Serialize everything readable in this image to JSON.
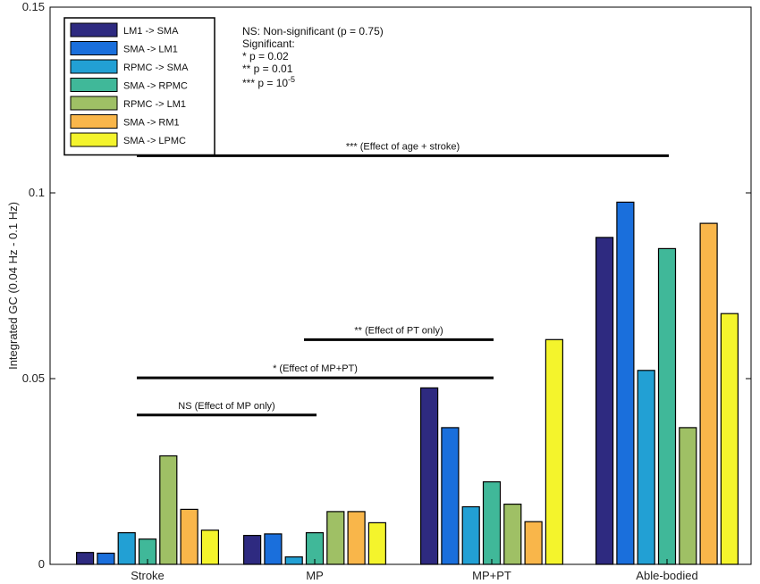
{
  "chart_data": {
    "type": "bar",
    "ylabel": "Integrated GC (0.04 Hz - 0.1 Hz)",
    "ylim": [
      0,
      0.15
    ],
    "yticks": [
      {
        "value": 0,
        "label": "0"
      },
      {
        "value": 0.05,
        "label": "0.05"
      },
      {
        "value": 0.1,
        "label": "0.1"
      },
      {
        "value": 0.15,
        "label": "0.15"
      }
    ],
    "categories": [
      "Stroke",
      "MP",
      "MP+PT",
      "Able-bodied"
    ],
    "series": [
      {
        "name": "LM1 -> SMA",
        "color": "#2e2a80",
        "values": [
          0.0032,
          0.0078,
          0.0475,
          0.088
        ]
      },
      {
        "name": "SMA -> LM1",
        "color": "#1a6fdc",
        "values": [
          0.003,
          0.0082,
          0.0368,
          0.0975
        ]
      },
      {
        "name": "RPMC -> SMA",
        "color": "#22a0d4",
        "values": [
          0.0085,
          0.002,
          0.0155,
          0.0522
        ]
      },
      {
        "name": "SMA -> RPMC",
        "color": "#40b899",
        "values": [
          0.0068,
          0.0085,
          0.0222,
          0.085
        ]
      },
      {
        "name": "RPMC -> LM1",
        "color": "#9fc065",
        "values": [
          0.0292,
          0.0142,
          0.0162,
          0.0368
        ]
      },
      {
        "name": "SMA -> RM1",
        "color": "#f9b64a",
        "values": [
          0.0148,
          0.0142,
          0.0115,
          0.0918
        ]
      },
      {
        "name": "SMA -> LPMC",
        "color": "#f4f42c",
        "values": [
          0.0092,
          0.0112,
          0.0605,
          0.0675
        ]
      }
    ],
    "legend_position": "top-left",
    "significance_lines": [
      {
        "label": "*** (Effect of age + stroke)",
        "from": "Stroke",
        "to": "Able-bodied",
        "y": 0.11
      },
      {
        "label": "** (Effect of PT only)",
        "from": "MP",
        "to": "MP+PT",
        "y": 0.0605
      },
      {
        "label": "* (Effect of MP+PT)",
        "from": "Stroke",
        "to": "MP+PT",
        "y": 0.0502
      },
      {
        "label": "NS (Effect of MP only)",
        "from": "Stroke",
        "to": "MP",
        "y": 0.0402
      }
    ],
    "notes": {
      "ns": "NS: Non-significant (p = 0.75)",
      "significant": "Significant:",
      "p1": "* p = 0.02",
      "p2": "** p = 0.01",
      "p3_prefix": "*** p = 10",
      "p3_exp": "-5"
    }
  }
}
